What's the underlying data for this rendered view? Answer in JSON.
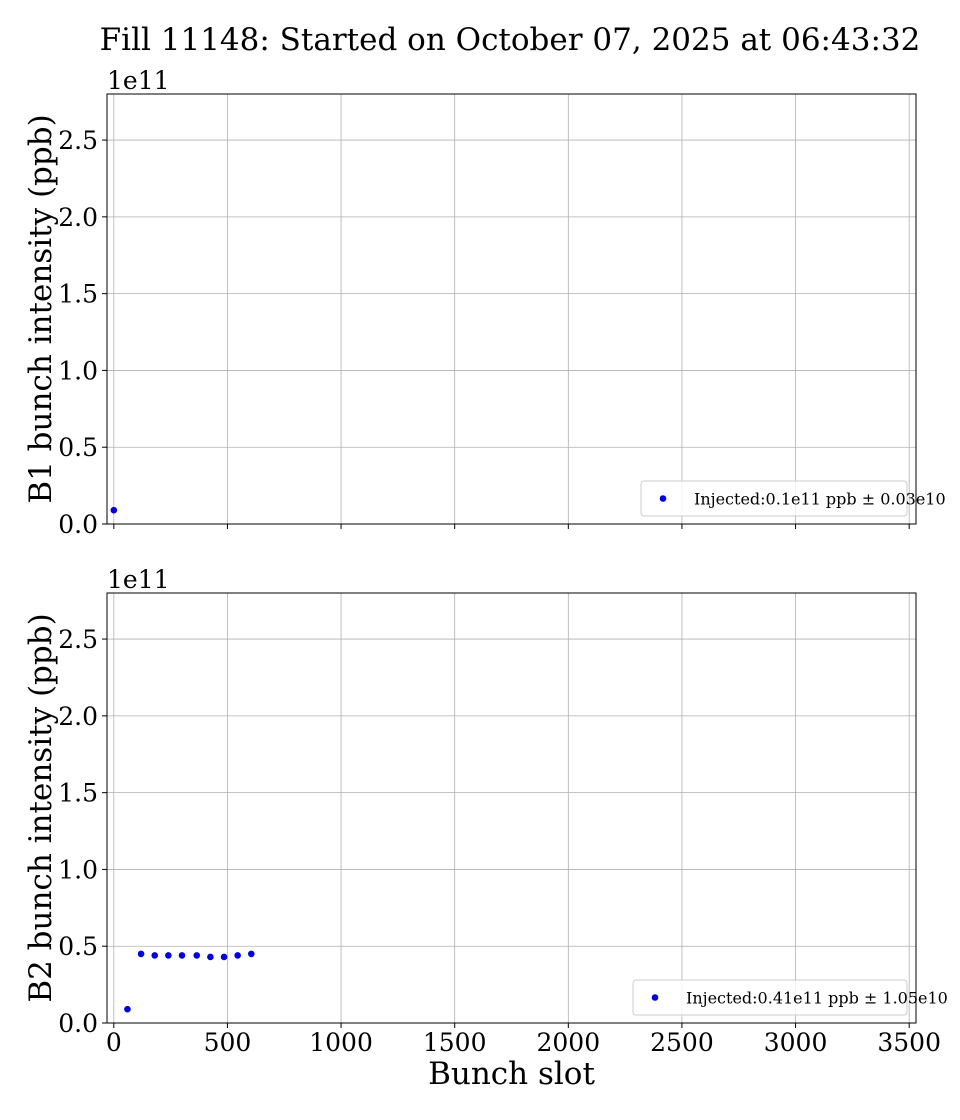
{
  "title": "Fill 11148: Started on October 07, 2025 at 06:43:32",
  "chart_data": [
    {
      "type": "scatter",
      "ylabel": "B1 bunch intensity (ppb)",
      "xlabel": "",
      "offset_text": "1e11",
      "xlim": [
        -30,
        3530
      ],
      "ylim": [
        0,
        2.8
      ],
      "x_ticks": [
        0,
        500,
        1000,
        1500,
        2000,
        2500,
        3000,
        3500
      ],
      "x_tick_labels_shown": false,
      "y_ticks": [
        0.0,
        0.5,
        1.0,
        1.5,
        2.0,
        2.5
      ],
      "y_tick_labels": [
        "0.0",
        "0.5",
        "1.0",
        "1.5",
        "2.0",
        "2.5"
      ],
      "grid": true,
      "legend": {
        "position": "lower right",
        "label": "Injected:0.1e11 ppb ± 0.03e10",
        "color": "#0000e0"
      },
      "series": [
        {
          "color": "#0000e0",
          "x": [
            0
          ],
          "y": [
            0.09
          ]
        }
      ]
    },
    {
      "type": "scatter",
      "ylabel": "B2 bunch intensity (ppb)",
      "xlabel": "Bunch slot",
      "offset_text": "1e11",
      "xlim": [
        -30,
        3530
      ],
      "ylim": [
        0,
        2.8
      ],
      "x_ticks": [
        0,
        500,
        1000,
        1500,
        2000,
        2500,
        3000,
        3500
      ],
      "x_tick_labels": [
        "0",
        "500",
        "1000",
        "1500",
        "2000",
        "2500",
        "3000",
        "3500"
      ],
      "x_tick_labels_shown": true,
      "y_ticks": [
        0.0,
        0.5,
        1.0,
        1.5,
        2.0,
        2.5
      ],
      "y_tick_labels": [
        "0.0",
        "0.5",
        "1.0",
        "1.5",
        "2.0",
        "2.5"
      ],
      "grid": true,
      "legend": {
        "position": "lower right",
        "label": "Injected:0.41e11 ppb ± 1.05e10",
        "color": "#0000e0"
      },
      "series": [
        {
          "color": "#0000e0",
          "x": [
            60,
            120,
            180,
            240,
            300,
            365,
            425,
            485,
            545,
            605
          ],
          "y": [
            0.09,
            0.45,
            0.44,
            0.44,
            0.44,
            0.44,
            0.43,
            0.43,
            0.44,
            0.45
          ]
        }
      ]
    }
  ]
}
